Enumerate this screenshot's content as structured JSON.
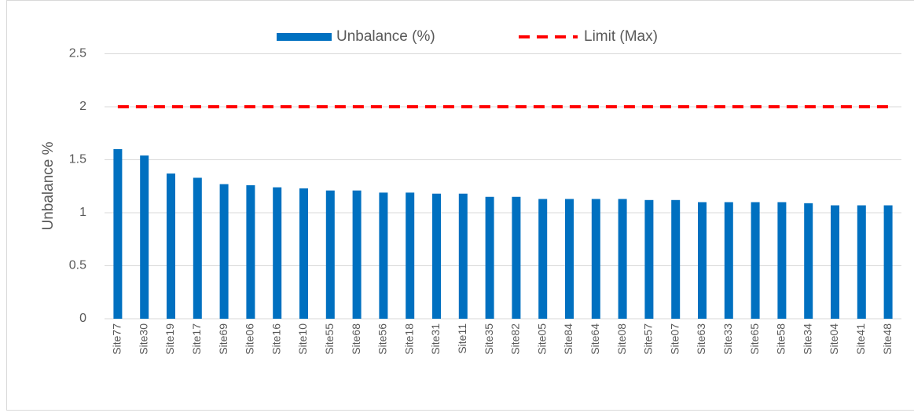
{
  "chart_data": {
    "type": "bar",
    "y_axis_label": "Unbalance %",
    "categories": [
      "Site77",
      "Site30",
      "Site19",
      "Site17",
      "Site69",
      "Site06",
      "Site16",
      "Site10",
      "Site55",
      "Site68",
      "Site56",
      "Site18",
      "Site31",
      "Site11",
      "Site35",
      "Site82",
      "Site05",
      "Site84",
      "Site64",
      "Site08",
      "Site57",
      "Site07",
      "Site63",
      "Site33",
      "Site65",
      "Site58",
      "Site34",
      "Site04",
      "Site41",
      "Site48"
    ],
    "series": [
      {
        "name": "Unbalance (%)",
        "type": "bar",
        "color": "#0070c0",
        "values": [
          1.6,
          1.54,
          1.37,
          1.33,
          1.27,
          1.26,
          1.24,
          1.23,
          1.21,
          1.21,
          1.19,
          1.19,
          1.18,
          1.18,
          1.15,
          1.15,
          1.13,
          1.13,
          1.13,
          1.13,
          1.12,
          1.12,
          1.1,
          1.1,
          1.1,
          1.1,
          1.09,
          1.07,
          1.07,
          1.07
        ]
      },
      {
        "name": "Limit (Max)",
        "type": "line",
        "dashed": true,
        "color": "#ff0000",
        "values": [
          2,
          2,
          2,
          2,
          2,
          2,
          2,
          2,
          2,
          2,
          2,
          2,
          2,
          2,
          2,
          2,
          2,
          2,
          2,
          2,
          2,
          2,
          2,
          2,
          2,
          2,
          2,
          2,
          2,
          2
        ]
      }
    ],
    "ylim": [
      0,
      2.5
    ],
    "yticks": [
      0,
      0.5,
      1,
      1.5,
      2,
      2.5
    ],
    "grid": true,
    "legend": "top"
  }
}
